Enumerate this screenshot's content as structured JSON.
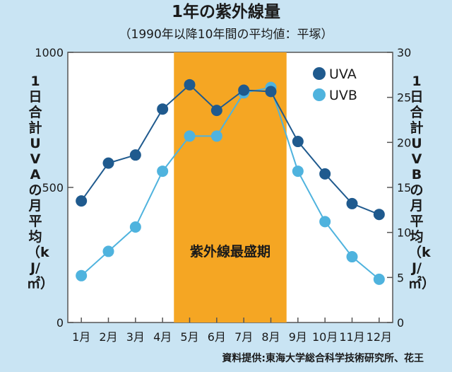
{
  "chart_data": {
    "type": "line",
    "title": "1年の紫外線量",
    "subtitle": "（1990年以降10年間の平均値：平塚）",
    "categories": [
      "1月",
      "2月",
      "3月",
      "4月",
      "5月",
      "6月",
      "7月",
      "8月",
      "9月",
      "10月",
      "11月",
      "12月"
    ],
    "series": [
      {
        "name": "UVA",
        "axis": "left",
        "color": "#1f5a8e",
        "values": [
          450,
          590,
          620,
          790,
          880,
          785,
          860,
          855,
          670,
          550,
          440,
          400
        ]
      },
      {
        "name": "UVB",
        "axis": "right",
        "color": "#4fb3de",
        "values": [
          5.2,
          7.9,
          10.6,
          16.8,
          20.7,
          20.7,
          25.5,
          26.1,
          16.8,
          11.2,
          7.3,
          4.8
        ]
      }
    ],
    "y_left": {
      "label": "1日合計UVAの月平均（kJ/㎡）",
      "ticks": [
        0,
        500,
        1000
      ],
      "lim": [
        0,
        1000
      ]
    },
    "y_right": {
      "label": "1日合計UVBの月平均（kJ/㎡）",
      "ticks": [
        0,
        5,
        10,
        15,
        20,
        25,
        30
      ],
      "lim": [
        0,
        30
      ]
    },
    "highlight": {
      "from": "5月",
      "to": "8月",
      "label": "紫外線最盛期",
      "color": "#f5a623"
    },
    "legend_position": "top-right",
    "grid": false,
    "source": "資料提供:東海大学総合科学技術研究所、花王"
  }
}
